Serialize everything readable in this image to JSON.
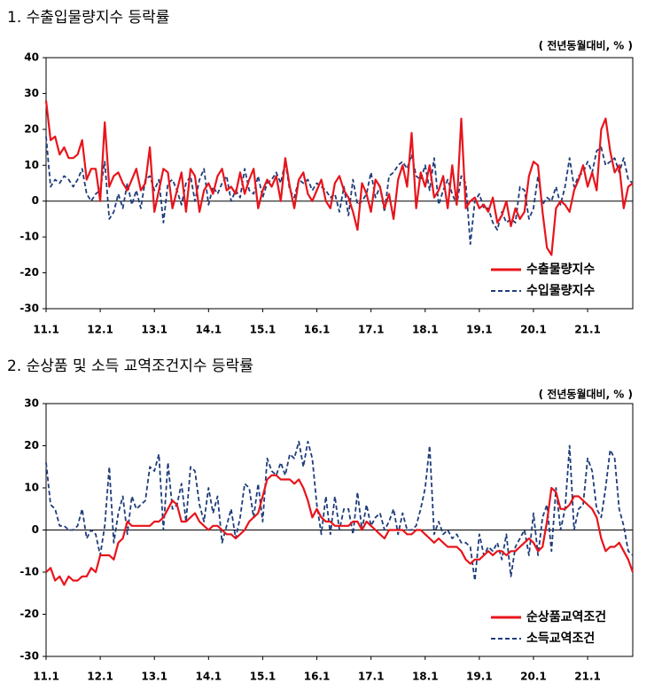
{
  "chart_data": [
    {
      "type": "line",
      "title": "1. 수출입물량지수 등락률",
      "subtitle": "( 전년동월대비, % )",
      "categories": [
        "11.1",
        null,
        null,
        null,
        null,
        null,
        null,
        null,
        null,
        null,
        null,
        null,
        "12.1",
        null,
        null,
        null,
        null,
        null,
        null,
        null,
        null,
        null,
        null,
        null,
        "13.1",
        null,
        null,
        null,
        null,
        null,
        null,
        null,
        null,
        null,
        null,
        null,
        "14.1",
        null,
        null,
        null,
        null,
        null,
        null,
        null,
        null,
        null,
        null,
        null,
        "15.1",
        null,
        null,
        null,
        null,
        null,
        null,
        null,
        null,
        null,
        null,
        null,
        "16.1",
        null,
        null,
        null,
        null,
        null,
        null,
        null,
        null,
        null,
        null,
        null,
        "17.1",
        null,
        null,
        null,
        null,
        null,
        null,
        null,
        null,
        null,
        null,
        null,
        "18.1",
        null,
        null,
        null,
        null,
        null,
        null,
        null,
        null,
        null,
        null,
        null,
        "19.1",
        null,
        null,
        null,
        null,
        null,
        null,
        null,
        null,
        null,
        null,
        null,
        "20.1",
        null,
        null,
        null,
        null,
        null,
        null,
        null,
        null,
        null,
        null,
        null,
        "21.1",
        null,
        null,
        null,
        null,
        null,
        null,
        null,
        null,
        null,
        null
      ],
      "series": [
        {
          "name": "수출물량지수",
          "color": "#e8141b",
          "dash": false,
          "values": [
            28,
            17,
            18,
            13,
            15,
            12,
            12,
            13,
            17,
            6,
            9,
            9,
            0,
            22,
            4,
            7,
            8,
            5,
            3,
            6,
            9,
            3,
            5,
            15,
            -3,
            3,
            9,
            8,
            -2,
            3,
            8,
            -3,
            9,
            7,
            -3,
            3,
            5,
            2,
            7,
            9,
            3,
            4,
            2,
            8,
            2,
            6,
            9,
            -2,
            3,
            6,
            4,
            7,
            0,
            12,
            4,
            -2,
            6,
            8,
            2,
            0,
            3,
            6,
            0,
            -2,
            5,
            7,
            3,
            1,
            -3,
            -8,
            5,
            2,
            -3,
            6,
            4,
            -2,
            2,
            -5,
            6,
            10,
            4,
            19,
            -2,
            8,
            4,
            10,
            1,
            3,
            7,
            -2,
            10,
            -1,
            23,
            -2,
            0,
            1,
            -2,
            -1,
            -3,
            1,
            -6,
            -4,
            0,
            -7,
            -2,
            -5,
            -3,
            7,
            11,
            10,
            -3,
            -13,
            -15,
            -2,
            0,
            -1,
            -3,
            3,
            6,
            10,
            4,
            8,
            3,
            20,
            23,
            14,
            8,
            10,
            -2,
            4,
            5
          ]
        },
        {
          "name": "수입물량지수",
          "color": "#1f3d7a",
          "dash": true,
          "values": [
            18,
            4,
            6,
            5,
            7,
            6,
            4,
            6,
            9,
            2,
            0,
            2,
            3,
            11,
            -5,
            -3,
            2,
            -2,
            5,
            -1,
            3,
            -2,
            6,
            7,
            3,
            6,
            -6,
            5,
            6,
            3,
            -1,
            5,
            7,
            0,
            6,
            9,
            -1,
            4,
            2,
            5,
            7,
            0,
            3,
            1,
            9,
            3,
            2,
            7,
            1,
            5,
            6,
            8,
            5,
            11,
            3,
            1,
            6,
            5,
            6,
            3,
            5,
            4,
            3,
            1,
            2,
            -3,
            4,
            -4,
            6,
            -1,
            0,
            2,
            8,
            1,
            4,
            -3,
            7,
            8,
            10,
            11,
            9,
            13,
            7,
            6,
            10,
            3,
            12,
            -1,
            3,
            6,
            2,
            -1,
            7,
            5,
            -12,
            0,
            2,
            -2,
            -2,
            -6,
            -8,
            -3,
            -6,
            -5,
            -6,
            4,
            3,
            -5,
            -2,
            7,
            -1,
            1,
            0,
            4,
            -1,
            4,
            12,
            4,
            7,
            8,
            11,
            8,
            14,
            15,
            10,
            11,
            12,
            8,
            12,
            6,
            5
          ]
        }
      ],
      "ylim": [
        -30,
        40
      ],
      "yticks": [
        -30,
        -20,
        -10,
        0,
        10,
        20,
        30,
        40
      ],
      "legend": "lower right"
    },
    {
      "type": "line",
      "title": "2. 순상품 및 소득 교역조건지수 등락률",
      "subtitle": "( 전년동월대비, % )",
      "categories": [
        "11.1",
        null,
        null,
        null,
        null,
        null,
        null,
        null,
        null,
        null,
        null,
        null,
        "12.1",
        null,
        null,
        null,
        null,
        null,
        null,
        null,
        null,
        null,
        null,
        null,
        "13.1",
        null,
        null,
        null,
        null,
        null,
        null,
        null,
        null,
        null,
        null,
        null,
        "14.1",
        null,
        null,
        null,
        null,
        null,
        null,
        null,
        null,
        null,
        null,
        null,
        "15.1",
        null,
        null,
        null,
        null,
        null,
        null,
        null,
        null,
        null,
        null,
        null,
        "16.1",
        null,
        null,
        null,
        null,
        null,
        null,
        null,
        null,
        null,
        null,
        null,
        "17.1",
        null,
        null,
        null,
        null,
        null,
        null,
        null,
        null,
        null,
        null,
        null,
        "18.1",
        null,
        null,
        null,
        null,
        null,
        null,
        null,
        null,
        null,
        null,
        null,
        "19.1",
        null,
        null,
        null,
        null,
        null,
        null,
        null,
        null,
        null,
        null,
        null,
        "20.1",
        null,
        null,
        null,
        null,
        null,
        null,
        null,
        null,
        null,
        null,
        null,
        "21.1",
        null,
        null,
        null,
        null,
        null,
        null,
        null,
        null,
        null,
        null
      ],
      "series": [
        {
          "name": "순상품교역조건",
          "color": "#e8141b",
          "dash": false,
          "values": [
            -10,
            -9,
            -12,
            -11,
            -13,
            -11,
            -12,
            -12,
            -11,
            -11,
            -9,
            -10,
            -6,
            -6,
            -6,
            -7,
            -3,
            -2,
            2,
            1,
            1,
            1,
            1,
            1,
            2,
            2,
            3,
            5,
            7,
            6,
            2,
            2,
            3,
            4,
            2,
            1,
            0,
            1,
            1,
            0,
            -1,
            -1,
            -2,
            -1,
            0,
            2,
            3,
            4,
            8,
            12,
            13,
            13,
            12,
            12,
            12,
            11,
            12,
            10,
            7,
            3,
            5,
            3,
            2,
            2,
            1,
            1,
            1,
            1,
            2,
            2,
            0,
            2,
            1,
            0,
            -1,
            -2,
            0,
            0,
            0,
            0,
            -1,
            -1,
            0,
            0,
            -1,
            -2,
            -3,
            -2,
            -3,
            -4,
            -4,
            -4,
            -5,
            -7,
            -8,
            -7,
            -7,
            -6,
            -5,
            -6,
            -5,
            -5,
            -6,
            -5,
            -5,
            -4,
            -3,
            -2,
            -3,
            -5,
            -4,
            2,
            10,
            9,
            5,
            5,
            6,
            8,
            8,
            7,
            6,
            5,
            3,
            -2,
            -5,
            -4,
            -4,
            -3,
            -5,
            -7,
            -10
          ]
        },
        {
          "name": "소득교역조건",
          "color": "#1f3d7a",
          "dash": true,
          "values": [
            16,
            6,
            5,
            1,
            1,
            0,
            0,
            1,
            5,
            -2,
            0,
            -1,
            -6,
            1,
            15,
            -3,
            4,
            8,
            -1,
            8,
            5,
            6,
            7,
            15,
            14,
            18,
            0,
            16,
            5,
            6,
            11,
            2,
            15,
            14,
            6,
            2,
            10,
            4,
            8,
            -3,
            1,
            5,
            -2,
            3,
            11,
            10,
            3,
            11,
            2,
            17,
            14,
            13,
            16,
            13,
            18,
            17,
            21,
            15,
            21,
            17,
            6,
            -1,
            8,
            -1,
            8,
            0,
            5,
            5,
            -1,
            9,
            0,
            6,
            1,
            3,
            4,
            0,
            2,
            5,
            -1,
            4,
            0,
            0,
            1,
            5,
            10,
            20,
            -1,
            2,
            -1,
            0,
            -2,
            -1,
            -3,
            -3,
            -4,
            -12,
            -1,
            -6,
            -4,
            -5,
            -3,
            -7,
            -1,
            -11,
            -4,
            -2,
            0,
            -6,
            4,
            -6,
            3,
            6,
            -5,
            10,
            0,
            5,
            20,
            0,
            5,
            6,
            17,
            14,
            5,
            3,
            10,
            19,
            17,
            5,
            1,
            -5,
            -6
          ]
        }
      ],
      "ylim": [
        -30,
        30
      ],
      "yticks": [
        -30,
        -20,
        -10,
        0,
        10,
        20,
        30
      ],
      "legend": "lower right"
    }
  ]
}
